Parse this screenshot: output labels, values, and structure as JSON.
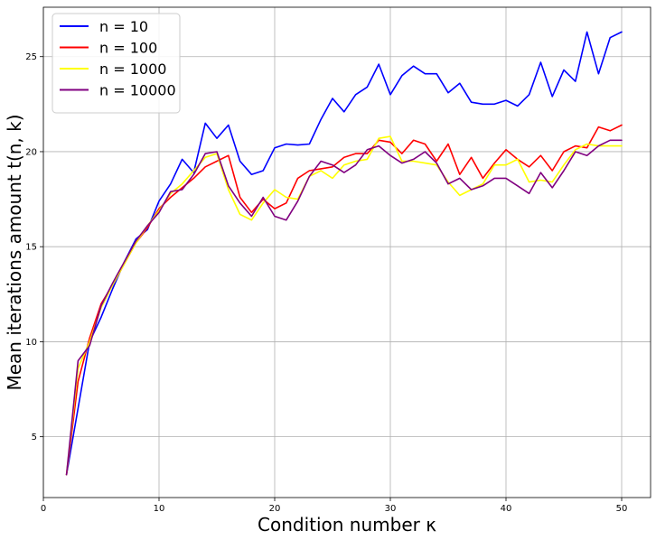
{
  "chart_data": {
    "type": "line",
    "title": "",
    "xlabel": "Condition number κ",
    "ylabel": "Mean iterations amount t(n, k)",
    "xlim": [
      0,
      52.5
    ],
    "ylim": [
      1.8,
      27.6
    ],
    "xticks": [
      0,
      10,
      20,
      30,
      40,
      50
    ],
    "yticks": [
      5,
      10,
      15,
      20,
      25
    ],
    "grid": true,
    "legend_position": "upper-left",
    "x": [
      2,
      3,
      4,
      5,
      6,
      7,
      8,
      9,
      10,
      11,
      12,
      13,
      14,
      15,
      16,
      17,
      18,
      19,
      20,
      21,
      22,
      23,
      24,
      25,
      26,
      27,
      28,
      29,
      30,
      31,
      32,
      33,
      34,
      35,
      36,
      37,
      38,
      39,
      40,
      41,
      42,
      43,
      44,
      45,
      46,
      47,
      48,
      49,
      50
    ],
    "series": [
      {
        "name": "n = 10",
        "color": "#0000ff",
        "values": [
          3.0,
          6.5,
          10.0,
          11.3,
          12.8,
          14.2,
          15.4,
          15.9,
          17.4,
          18.3,
          19.6,
          18.9,
          21.5,
          20.7,
          21.4,
          19.5,
          18.8,
          19.0,
          20.2,
          20.4,
          20.35,
          20.4,
          21.7,
          22.8,
          22.1,
          23.0,
          23.4,
          24.6,
          23.0,
          24.0,
          24.5,
          24.1,
          24.1,
          23.1,
          23.6,
          22.6,
          22.5,
          22.5,
          22.7,
          22.4,
          23.0,
          24.7,
          22.9,
          24.3,
          23.7,
          26.3,
          24.1,
          26.0,
          26.3
        ]
      },
      {
        "name": "n = 100",
        "color": "#ff0000",
        "values": [
          3.0,
          7.9,
          10.2,
          12.0,
          13.0,
          14.1,
          15.2,
          16.0,
          17.0,
          17.6,
          18.1,
          18.6,
          19.2,
          19.5,
          19.8,
          17.6,
          16.8,
          17.5,
          17.0,
          17.3,
          18.6,
          19.0,
          19.1,
          19.2,
          19.7,
          19.9,
          19.9,
          20.6,
          20.5,
          19.9,
          20.6,
          20.4,
          19.5,
          20.4,
          18.8,
          19.7,
          18.6,
          19.4,
          20.1,
          19.6,
          19.2,
          19.8,
          19.0,
          20.0,
          20.3,
          20.2,
          21.3,
          21.1,
          21.4
        ]
      },
      {
        "name": "n = 1000",
        "color": "#ffff00",
        "values": [
          3.0,
          8.6,
          10.0,
          11.8,
          13.0,
          14.1,
          15.2,
          16.1,
          16.9,
          17.8,
          18.3,
          19.0,
          19.7,
          19.9,
          18.0,
          16.7,
          16.4,
          17.3,
          18.0,
          17.6,
          17.5,
          18.7,
          19.0,
          18.6,
          19.3,
          19.5,
          19.6,
          20.7,
          20.8,
          19.5,
          19.5,
          19.4,
          19.3,
          18.4,
          17.7,
          18.0,
          18.3,
          19.3,
          19.3,
          19.6,
          18.4,
          18.5,
          18.4,
          19.3,
          20.1,
          20.4,
          20.3,
          20.3,
          20.3
        ]
      },
      {
        "name": "n = 10000",
        "color": "#800080",
        "values": [
          3.0,
          9.0,
          9.8,
          11.9,
          13.1,
          14.2,
          15.3,
          16.1,
          16.8,
          17.9,
          18.0,
          18.8,
          19.9,
          20.0,
          18.2,
          17.3,
          16.6,
          17.6,
          16.6,
          16.4,
          17.4,
          18.7,
          19.5,
          19.3,
          18.9,
          19.3,
          20.1,
          20.3,
          19.8,
          19.4,
          19.6,
          20.0,
          19.4,
          18.3,
          18.6,
          18.0,
          18.2,
          18.6,
          18.6,
          18.2,
          17.8,
          18.9,
          18.1,
          19.0,
          20.0,
          19.8,
          20.3,
          20.6,
          20.6
        ]
      }
    ]
  }
}
